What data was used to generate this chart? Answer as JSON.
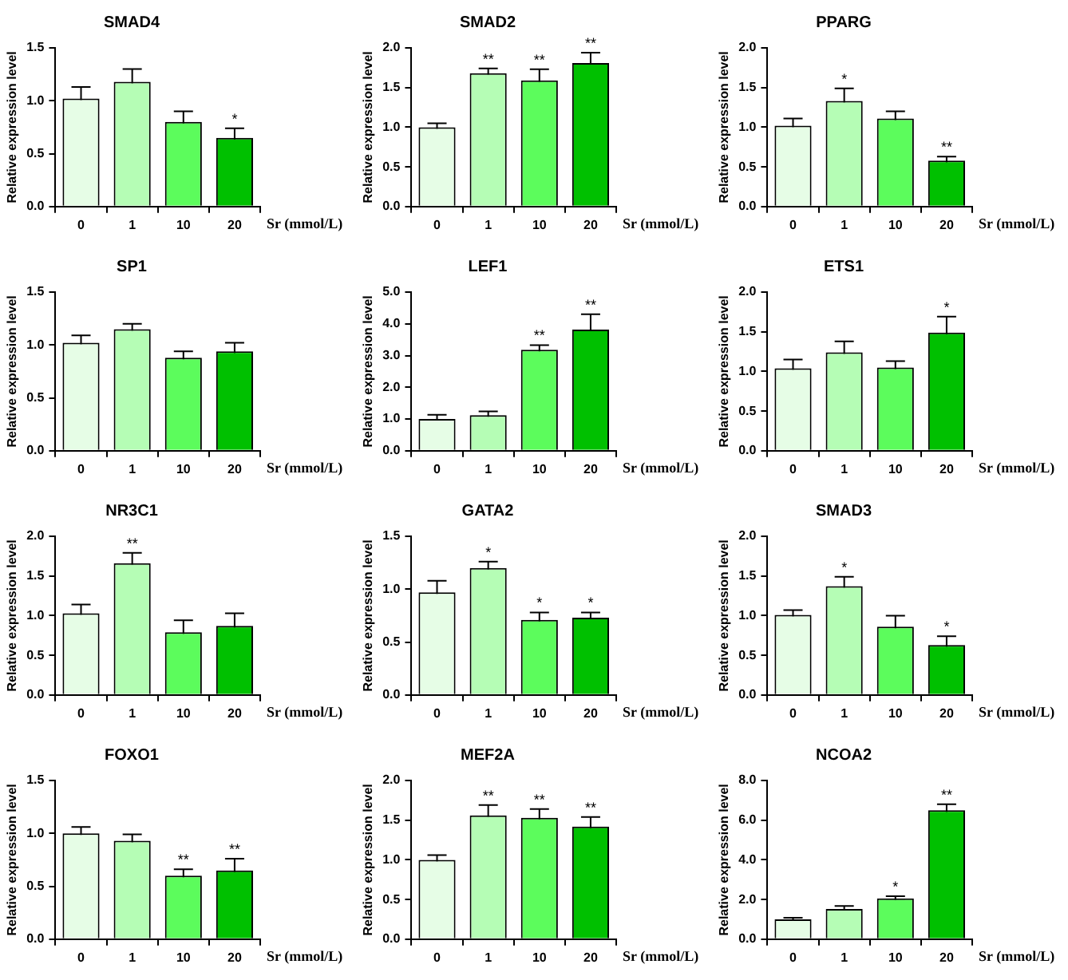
{
  "chart_data": [
    {
      "type": "bar",
      "title": "SMAD4",
      "xlabel": "Sr (mmol/L)",
      "ylabel": "Relative expression level",
      "categories": [
        "0",
        "1",
        "10",
        "20"
      ],
      "colors": [
        "#e6fde6",
        "#b5fdb5",
        "#5cfc5c",
        "#00c000"
      ],
      "values": [
        1.02,
        1.18,
        0.8,
        0.65
      ],
      "errors": [
        0.11,
        0.12,
        0.1,
        0.09
      ],
      "ylim": [
        0,
        1.5
      ],
      "yticks": [
        {
          "value": 0,
          "label": "0.0"
        },
        {
          "value": 0.5,
          "label": "0.5"
        },
        {
          "value": 1,
          "label": "1.0"
        },
        {
          "value": 1.5,
          "label": "1.5"
        }
      ],
      "grid": false,
      "legend": false,
      "annotations": [
        {
          "text": "*",
          "x": "20",
          "y": 0.74
        }
      ]
    },
    {
      "type": "bar",
      "title": "SMAD2",
      "xlabel": "Sr (mmol/L)",
      "ylabel": "Relative expression level",
      "categories": [
        "0",
        "1",
        "10",
        "20"
      ],
      "colors": [
        "#e6fde6",
        "#b5fdb5",
        "#5cfc5c",
        "#00c000"
      ],
      "values": [
        1.0,
        1.68,
        1.59,
        1.81
      ],
      "errors": [
        0.05,
        0.06,
        0.14,
        0.13
      ],
      "ylim": [
        0,
        2
      ],
      "yticks": [
        {
          "value": 0,
          "label": "0.0"
        },
        {
          "value": 0.5,
          "label": "0.5"
        },
        {
          "value": 1,
          "label": "1.0"
        },
        {
          "value": 1.5,
          "label": "1.5"
        },
        {
          "value": 2,
          "label": "2.0"
        }
      ],
      "grid": false,
      "legend": false,
      "annotations": [
        {
          "text": "**",
          "x": "1",
          "y": 1.74
        },
        {
          "text": "**",
          "x": "10",
          "y": 1.73
        },
        {
          "text": "**",
          "x": "20",
          "y": 1.94
        }
      ]
    },
    {
      "type": "bar",
      "title": "PPARG",
      "xlabel": "Sr (mmol/L)",
      "ylabel": "Relative expression level",
      "categories": [
        "0",
        "1",
        "10",
        "20"
      ],
      "colors": [
        "#e6fde6",
        "#b5fdb5",
        "#5cfc5c",
        "#00c000"
      ],
      "values": [
        1.02,
        1.33,
        1.11,
        0.58
      ],
      "errors": [
        0.09,
        0.16,
        0.09,
        0.05
      ],
      "ylim": [
        0,
        2
      ],
      "yticks": [
        {
          "value": 0,
          "label": "0.0"
        },
        {
          "value": 0.5,
          "label": "0.5"
        },
        {
          "value": 1,
          "label": "1.0"
        },
        {
          "value": 1.5,
          "label": "1.5"
        },
        {
          "value": 2,
          "label": "2.0"
        }
      ],
      "grid": false,
      "legend": false,
      "annotations": [
        {
          "text": "*",
          "x": "1",
          "y": 1.49
        },
        {
          "text": "**",
          "x": "20",
          "y": 0.63
        }
      ]
    },
    {
      "type": "bar",
      "title": "SP1",
      "xlabel": "Sr (mmol/L)",
      "ylabel": "Relative expression level",
      "categories": [
        "0",
        "1",
        "10",
        "20"
      ],
      "colors": [
        "#e6fde6",
        "#b5fdb5",
        "#5cfc5c",
        "#00c000"
      ],
      "values": [
        1.02,
        1.15,
        0.88,
        0.94
      ],
      "errors": [
        0.07,
        0.05,
        0.06,
        0.08
      ],
      "ylim": [
        0,
        1.5
      ],
      "yticks": [
        {
          "value": 0,
          "label": "0.0"
        },
        {
          "value": 0.5,
          "label": "0.5"
        },
        {
          "value": 1,
          "label": "1.0"
        },
        {
          "value": 1.5,
          "label": "1.5"
        }
      ],
      "grid": false,
      "legend": false
    },
    {
      "type": "bar",
      "title": "LEF1",
      "xlabel": "Sr (mmol/L)",
      "ylabel": "Relative expression level",
      "categories": [
        "0",
        "1",
        "10",
        "20"
      ],
      "colors": [
        "#e6fde6",
        "#b5fdb5",
        "#5cfc5c",
        "#00c000"
      ],
      "values": [
        1.0,
        1.12,
        3.18,
        3.82
      ],
      "errors": [
        0.13,
        0.12,
        0.15,
        0.48
      ],
      "ylim": [
        0,
        5
      ],
      "yticks": [
        {
          "value": 0,
          "label": "0.0"
        },
        {
          "value": 1,
          "label": "1.0"
        },
        {
          "value": 2,
          "label": "2.0"
        },
        {
          "value": 3,
          "label": "3.0"
        },
        {
          "value": 4,
          "label": "4.0"
        },
        {
          "value": 5,
          "label": "5.0"
        }
      ],
      "grid": false,
      "legend": false,
      "annotations": [
        {
          "text": "**",
          "x": "10",
          "y": 3.33
        },
        {
          "text": "**",
          "x": "20",
          "y": 4.3
        }
      ]
    },
    {
      "type": "bar",
      "title": "ETS1",
      "xlabel": "Sr (mmol/L)",
      "ylabel": "Relative expression level",
      "categories": [
        "0",
        "1",
        "10",
        "20"
      ],
      "colors": [
        "#e6fde6",
        "#b5fdb5",
        "#5cfc5c",
        "#00c000"
      ],
      "values": [
        1.04,
        1.24,
        1.05,
        1.49
      ],
      "errors": [
        0.11,
        0.14,
        0.08,
        0.2
      ],
      "ylim": [
        0,
        2
      ],
      "yticks": [
        {
          "value": 0,
          "label": "0.0"
        },
        {
          "value": 0.5,
          "label": "0.5"
        },
        {
          "value": 1,
          "label": "1.0"
        },
        {
          "value": 1.5,
          "label": "1.5"
        },
        {
          "value": 2,
          "label": "2.0"
        }
      ],
      "grid": false,
      "legend": false,
      "annotations": [
        {
          "text": "*",
          "x": "20",
          "y": 1.69
        }
      ]
    },
    {
      "type": "bar",
      "title": "NR3C1",
      "xlabel": "Sr (mmol/L)",
      "ylabel": "Relative expression level",
      "categories": [
        "0",
        "1",
        "10",
        "20"
      ],
      "colors": [
        "#e6fde6",
        "#b5fdb5",
        "#5cfc5c",
        "#00c000"
      ],
      "values": [
        1.03,
        1.66,
        0.79,
        0.87
      ],
      "errors": [
        0.11,
        0.13,
        0.15,
        0.16
      ],
      "ylim": [
        0,
        2
      ],
      "yticks": [
        {
          "value": 0,
          "label": "0.0"
        },
        {
          "value": 0.5,
          "label": "0.5"
        },
        {
          "value": 1,
          "label": "1.0"
        },
        {
          "value": 1.5,
          "label": "1.5"
        },
        {
          "value": 2,
          "label": "2.0"
        }
      ],
      "grid": false,
      "legend": false,
      "annotations": [
        {
          "text": "**",
          "x": "1",
          "y": 1.79
        }
      ]
    },
    {
      "type": "bar",
      "title": "GATA2",
      "xlabel": "Sr (mmol/L)",
      "ylabel": "Relative expression level",
      "categories": [
        "0",
        "1",
        "10",
        "20"
      ],
      "colors": [
        "#e6fde6",
        "#b5fdb5",
        "#5cfc5c",
        "#00c000"
      ],
      "values": [
        0.97,
        1.2,
        0.71,
        0.73
      ],
      "errors": [
        0.11,
        0.06,
        0.07,
        0.05
      ],
      "ylim": [
        0,
        1.5
      ],
      "yticks": [
        {
          "value": 0,
          "label": "0.0"
        },
        {
          "value": 0.5,
          "label": "0.5"
        },
        {
          "value": 1,
          "label": "1.0"
        },
        {
          "value": 1.5,
          "label": "1.5"
        }
      ],
      "grid": false,
      "legend": false,
      "annotations": [
        {
          "text": "*",
          "x": "1",
          "y": 1.26
        },
        {
          "text": "*",
          "x": "10",
          "y": 0.78
        },
        {
          "text": "*",
          "x": "20",
          "y": 0.78
        }
      ]
    },
    {
      "type": "bar",
      "title": "SMAD3",
      "xlabel": "Sr (mmol/L)",
      "ylabel": "Relative expression level",
      "categories": [
        "0",
        "1",
        "10",
        "20"
      ],
      "colors": [
        "#e6fde6",
        "#b5fdb5",
        "#5cfc5c",
        "#00c000"
      ],
      "values": [
        1.01,
        1.37,
        0.86,
        0.63
      ],
      "errors": [
        0.06,
        0.12,
        0.14,
        0.11
      ],
      "ylim": [
        0,
        2
      ],
      "yticks": [
        {
          "value": 0,
          "label": "0.0"
        },
        {
          "value": 0.5,
          "label": "0.5"
        },
        {
          "value": 1,
          "label": "1.0"
        },
        {
          "value": 1.5,
          "label": "1.5"
        },
        {
          "value": 2,
          "label": "2.0"
        }
      ],
      "grid": false,
      "legend": false,
      "annotations": [
        {
          "text": "*",
          "x": "1",
          "y": 1.49
        },
        {
          "text": "*",
          "x": "20",
          "y": 0.74
        }
      ]
    },
    {
      "type": "bar",
      "title": "FOXO1",
      "xlabel": "Sr (mmol/L)",
      "ylabel": "Relative expression level",
      "categories": [
        "0",
        "1",
        "10",
        "20"
      ],
      "colors": [
        "#e6fde6",
        "#b5fdb5",
        "#5cfc5c",
        "#00c000"
      ],
      "values": [
        1.0,
        0.93,
        0.6,
        0.65
      ],
      "errors": [
        0.06,
        0.06,
        0.06,
        0.11
      ],
      "ylim": [
        0,
        1.5
      ],
      "yticks": [
        {
          "value": 0,
          "label": "0.0"
        },
        {
          "value": 0.5,
          "label": "0.5"
        },
        {
          "value": 1,
          "label": "1.0"
        },
        {
          "value": 1.5,
          "label": "1.5"
        }
      ],
      "grid": false,
      "legend": false,
      "annotations": [
        {
          "text": "**",
          "x": "10",
          "y": 0.66
        },
        {
          "text": "**",
          "x": "20",
          "y": 0.76
        }
      ]
    },
    {
      "type": "bar",
      "title": "MEF2A",
      "xlabel": "Sr (mmol/L)",
      "ylabel": "Relative expression level",
      "categories": [
        "0",
        "1",
        "10",
        "20"
      ],
      "colors": [
        "#e6fde6",
        "#b5fdb5",
        "#5cfc5c",
        "#00c000"
      ],
      "values": [
        1.0,
        1.56,
        1.53,
        1.42
      ],
      "errors": [
        0.06,
        0.13,
        0.11,
        0.12
      ],
      "ylim": [
        0,
        2
      ],
      "yticks": [
        {
          "value": 0,
          "label": "0.0"
        },
        {
          "value": 0.5,
          "label": "0.5"
        },
        {
          "value": 1,
          "label": "1.0"
        },
        {
          "value": 1.5,
          "label": "1.5"
        },
        {
          "value": 2,
          "label": "2.0"
        }
      ],
      "grid": false,
      "legend": false,
      "annotations": [
        {
          "text": "**",
          "x": "1",
          "y": 1.69
        },
        {
          "text": "**",
          "x": "10",
          "y": 1.64
        },
        {
          "text": "**",
          "x": "20",
          "y": 1.54
        }
      ]
    },
    {
      "type": "bar",
      "title": "NCOA2",
      "xlabel": "Sr (mmol/L)",
      "ylabel": "Relative expression level",
      "categories": [
        "0",
        "1",
        "10",
        "20"
      ],
      "colors": [
        "#e6fde6",
        "#b5fdb5",
        "#5cfc5c",
        "#00c000"
      ],
      "values": [
        1.0,
        1.52,
        2.05,
        6.5
      ],
      "errors": [
        0.08,
        0.15,
        0.12,
        0.3
      ],
      "ylim": [
        0,
        8
      ],
      "yticks": [
        {
          "value": 0,
          "label": "0.0"
        },
        {
          "value": 2,
          "label": "2.0"
        },
        {
          "value": 4,
          "label": "4.0"
        },
        {
          "value": 6,
          "label": "6.0"
        },
        {
          "value": 8,
          "label": "8.0"
        }
      ],
      "grid": false,
      "legend": false,
      "annotations": [
        {
          "text": "*",
          "x": "10",
          "y": 2.17
        },
        {
          "text": "**",
          "x": "20",
          "y": 6.8
        }
      ]
    }
  ]
}
